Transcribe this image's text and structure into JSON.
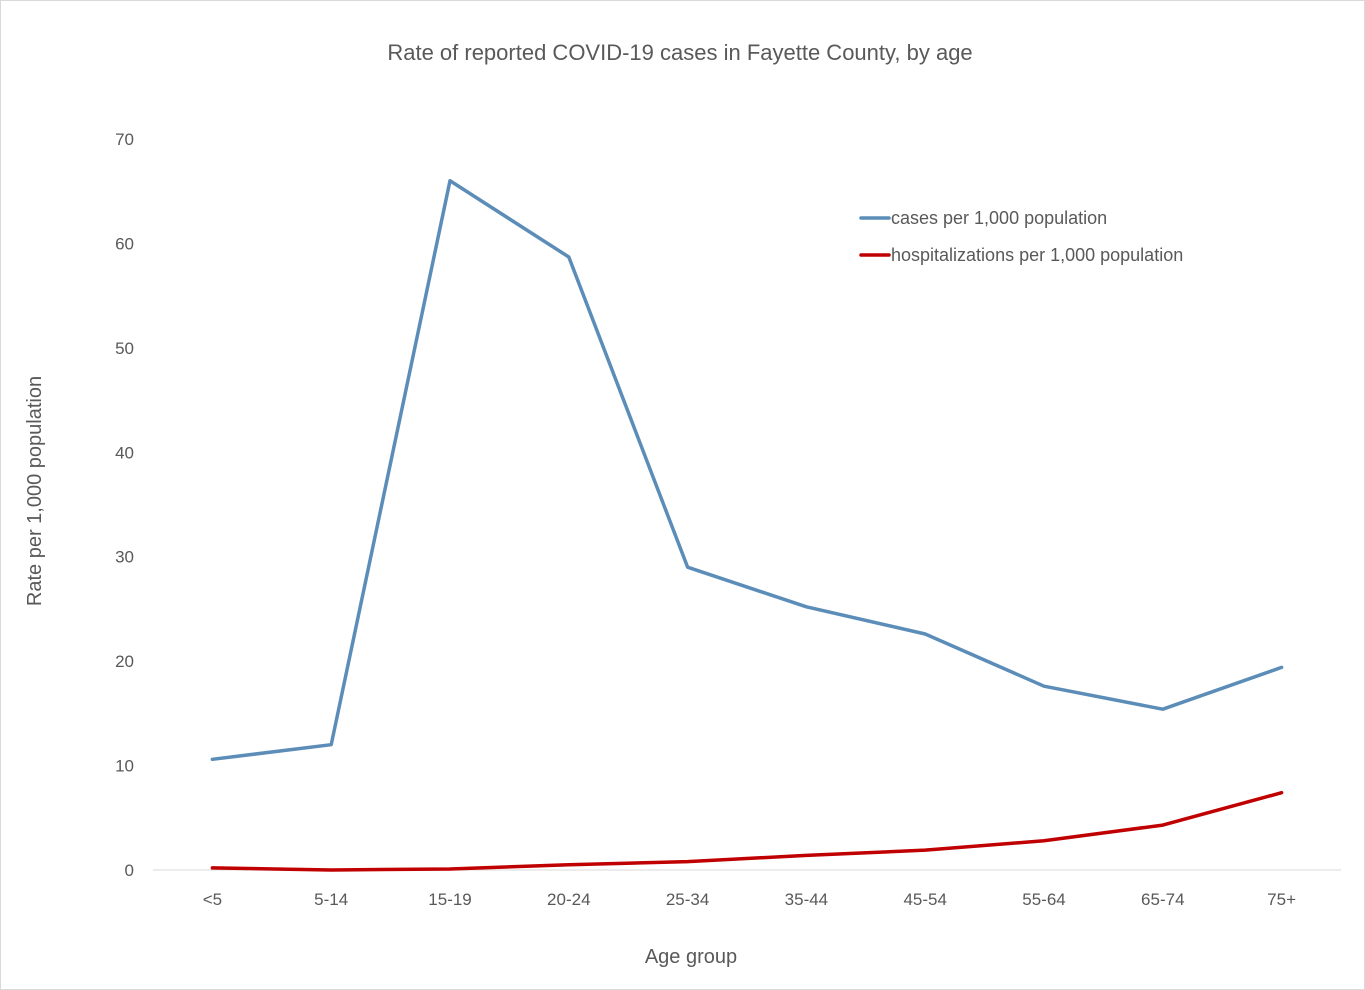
{
  "chart_data": {
    "type": "line",
    "title": "Rate of reported COVID-19 cases in Fayette County, by age",
    "xlabel": "Age group",
    "ylabel": "Rate per 1,000 population",
    "ylim": [
      0,
      70
    ],
    "yticks": [
      0,
      10,
      20,
      30,
      40,
      50,
      60,
      70
    ],
    "categories": [
      "<5",
      "5-14",
      "15-19",
      "20-24",
      "25-34",
      "35-44",
      "45-54",
      "55-64",
      "65-74",
      "75+"
    ],
    "series": [
      {
        "name": "cases per 1,000 population",
        "color": "#5b8db8",
        "values": [
          10.6,
          12.0,
          66.0,
          58.7,
          29.0,
          25.2,
          22.6,
          17.6,
          15.4,
          19.4
        ]
      },
      {
        "name": "hospitalizations per 1,000 population",
        "color": "#c00000",
        "values": [
          0.2,
          0.0,
          0.1,
          0.5,
          0.8,
          1.4,
          1.9,
          2.8,
          4.3,
          7.4
        ]
      }
    ],
    "grid": false,
    "legend": "top-right"
  }
}
